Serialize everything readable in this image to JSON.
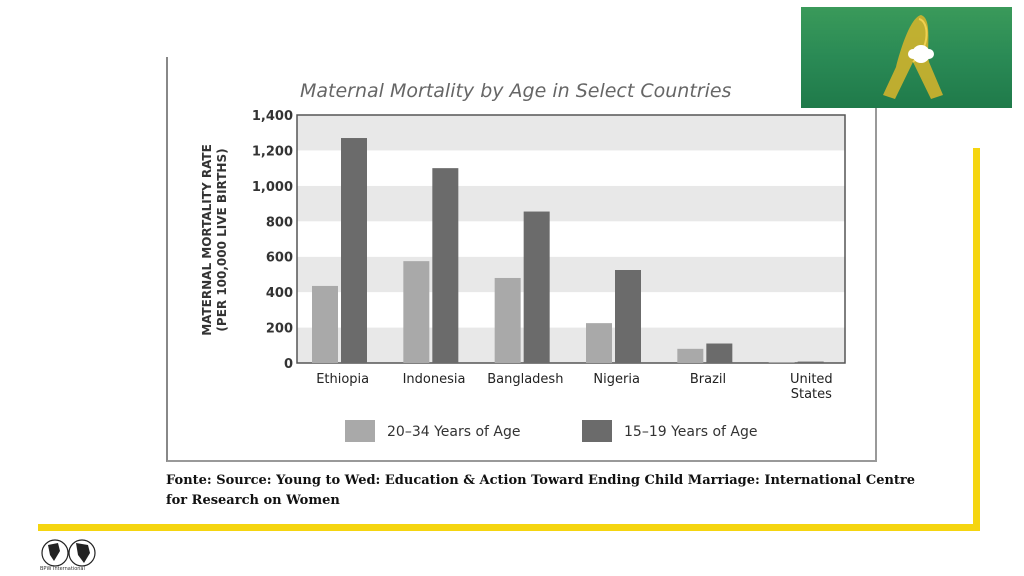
{
  "chart_data": {
    "type": "bar",
    "title": "Maternal Mortality by Age in Select Countries",
    "ylabel": "MATERNAL MORTALITY RATE",
    "ylabel_sub": "(PER 100,000 LIVE BIRTHS)",
    "xlabel": "",
    "ylim": [
      0,
      1400
    ],
    "yticks": [
      "0",
      "200",
      "400",
      "600",
      "800",
      "1,000",
      "1,200",
      "1,400"
    ],
    "categories": [
      "Ethiopia",
      "Indonesia",
      "Bangladesh",
      "Nigeria",
      "Brazil",
      "United States"
    ],
    "series": [
      {
        "name": "20–34 Years of Age",
        "color": "#a9a9a9",
        "values": [
          435,
          575,
          480,
          225,
          80,
          5
        ]
      },
      {
        "name": "15–19 Years of Age",
        "color": "#6b6b6b",
        "values": [
          1270,
          1100,
          855,
          525,
          110,
          8
        ]
      }
    ],
    "grid": "alternating horizontal bands",
    "legend": "bottom"
  },
  "source": {
    "prefix": "Fonte",
    "text": ": Source: Young to Wed: Education & Action Toward Ending Child Marriage: International Centre for Research on Women"
  },
  "logo": {
    "text": "BPW International"
  },
  "colors": {
    "accent": "#f5d510",
    "photo": "#2a8a55"
  }
}
